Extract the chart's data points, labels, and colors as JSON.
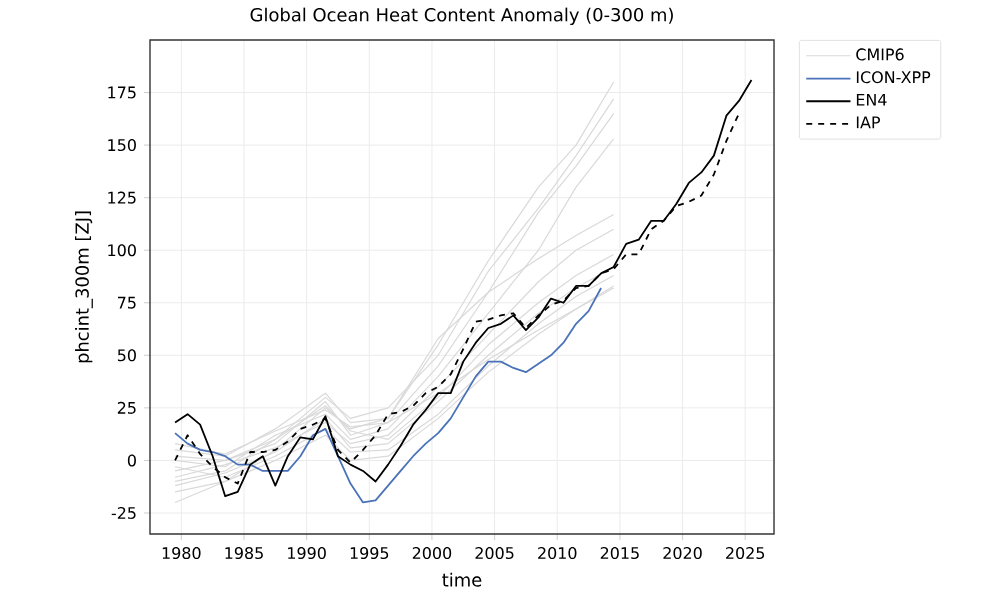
{
  "chart_data": {
    "type": "line",
    "title": "Global Ocean Heat Content Anomaly (0-300 m)",
    "xlabel": "time",
    "ylabel": "phcint_300m [ZJ]",
    "xlim": [
      1977.5,
      2027.3
    ],
    "ylim": [
      -35,
      200
    ],
    "xticks": [
      1980,
      1985,
      1990,
      1995,
      2000,
      2005,
      2010,
      2015,
      2020,
      2025
    ],
    "yticks": [
      -25,
      0,
      25,
      50,
      75,
      100,
      125,
      150,
      175
    ],
    "grid": true,
    "legend": "top right",
    "series": [
      {
        "name": "CMIP6",
        "color": "#d9d9d9",
        "x": [
          1979.5,
          1983.5,
          1987.5,
          1991.5,
          1993.5,
          1996.5,
          2000.5,
          2004.5,
          2008.5,
          2011.5,
          2014.5
        ],
        "values": [
          -20,
          -10,
          5,
          25,
          15,
          20,
          55,
          95,
          130,
          150,
          180
        ]
      },
      {
        "color": "#d9d9d9",
        "x": [
          1979.5,
          1983.5,
          1987.5,
          1991.5,
          1993.5,
          1996.5,
          2000.5,
          2004.5,
          2008.5,
          2011.5,
          2014.5
        ],
        "values": [
          -10,
          -5,
          10,
          30,
          20,
          25,
          50,
          90,
          120,
          145,
          172
        ]
      },
      {
        "color": "#d9d9d9",
        "x": [
          1979.5,
          1983.5,
          1987.5,
          1991.5,
          1993.5,
          1996.5,
          2000.5,
          2004.5,
          2008.5,
          2011.5,
          2014.5
        ],
        "values": [
          -5,
          0,
          8,
          28,
          12,
          18,
          45,
          80,
          118,
          140,
          165
        ]
      },
      {
        "color": "#d9d9d9",
        "x": [
          1979.5,
          1983.5,
          1987.5,
          1991.5,
          1993.5,
          1996.5,
          2000.5,
          2004.5,
          2008.5,
          2011.5,
          2014.5
        ],
        "values": [
          0,
          -3,
          12,
          22,
          10,
          15,
          40,
          70,
          100,
          130,
          153
        ]
      },
      {
        "color": "#d9d9d9",
        "x": [
          1979.5,
          1983.5,
          1987.5,
          1991.5,
          1993.5,
          1996.5,
          2000.5,
          2004.5,
          2008.5,
          2011.5,
          2014.5
        ],
        "values": [
          5,
          2,
          15,
          32,
          18,
          20,
          58,
          80,
          96,
          107,
          117
        ]
      },
      {
        "color": "#d9d9d9",
        "x": [
          1979.5,
          1983.5,
          1987.5,
          1991.5,
          1993.5,
          1996.5,
          2000.5,
          2004.5,
          2008.5,
          2011.5,
          2014.5
        ],
        "values": [
          -8,
          -2,
          6,
          18,
          8,
          12,
          35,
          60,
          85,
          100,
          110
        ]
      },
      {
        "color": "#d9d9d9",
        "x": [
          1979.5,
          1983.5,
          1987.5,
          1991.5,
          1993.5,
          1996.5,
          2000.5,
          2004.5,
          2008.5,
          2011.5,
          2014.5
        ],
        "values": [
          2,
          0,
          10,
          26,
          14,
          10,
          30,
          55,
          75,
          88,
          98
        ]
      },
      {
        "color": "#d9d9d9",
        "x": [
          1979.5,
          1983.5,
          1987.5,
          1991.5,
          1993.5,
          1996.5,
          2000.5,
          2004.5,
          2008.5,
          2011.5,
          2014.5
        ],
        "values": [
          -12,
          -6,
          4,
          20,
          6,
          8,
          28,
          50,
          70,
          82,
          92
        ]
      },
      {
        "color": "#d9d9d9",
        "x": [
          1979.5,
          1983.5,
          1987.5,
          1991.5,
          1993.5,
          1996.5,
          2000.5,
          2004.5,
          2008.5,
          2011.5,
          2014.5
        ],
        "values": [
          -3,
          -8,
          2,
          15,
          4,
          5,
          22,
          45,
          65,
          78,
          88
        ]
      },
      {
        "color": "#d9d9d9",
        "x": [
          1979.5,
          1983.5,
          1987.5,
          1991.5,
          1993.5,
          1996.5,
          2000.5,
          2004.5,
          2008.5,
          2011.5,
          2014.5
        ],
        "values": [
          8,
          3,
          14,
          24,
          16,
          18,
          32,
          48,
          62,
          72,
          83
        ]
      },
      {
        "color": "#d9d9d9",
        "x": [
          1979.5,
          1983.5,
          1987.5,
          1991.5,
          1993.5,
          1996.5,
          2000.5,
          2004.5,
          2008.5,
          2011.5,
          2014.5
        ],
        "values": [
          -15,
          -10,
          0,
          12,
          0,
          2,
          20,
          42,
          60,
          72,
          82
        ]
      },
      {
        "name": "ICON-XPP",
        "color": "#4a72b8",
        "x": [
          1979.5,
          1980.5,
          1981.5,
          1982.5,
          1983.5,
          1984.5,
          1985.5,
          1986.5,
          1987.5,
          1988.5,
          1989.5,
          1990.5,
          1991.5,
          1992.5,
          1993.5,
          1994.5,
          1995.5,
          1996.5,
          1997.5,
          1998.5,
          1999.5,
          2000.5,
          2001.5,
          2002.5,
          2003.5,
          2004.5,
          2005.5,
          2006.5,
          2007.5,
          2008.5,
          2009.5,
          2010.5,
          2011.5,
          2012.5,
          2013.5
        ],
        "values": [
          13,
          8,
          5,
          4,
          2,
          -2,
          -2,
          -5,
          -5,
          -5,
          2,
          12,
          15,
          2,
          -11,
          -20,
          -19,
          -12,
          -5,
          2,
          8,
          13,
          20,
          30,
          40,
          47,
          47,
          44,
          42,
          46,
          50,
          56,
          65,
          71,
          82
        ]
      },
      {
        "name": "EN4",
        "color": "#000000",
        "x": [
          1979.5,
          1980.5,
          1981.5,
          1982.5,
          1983.5,
          1984.5,
          1985.5,
          1986.5,
          1987.5,
          1988.5,
          1989.5,
          1990.5,
          1991.5,
          1992.5,
          1993.5,
          1994.5,
          1995.5,
          1996.5,
          1997.5,
          1998.5,
          1999.5,
          2000.5,
          2001.5,
          2002.5,
          2003.5,
          2004.5,
          2005.5,
          2006.5,
          2007.5,
          2008.5,
          2009.5,
          2010.5,
          2011.5,
          2012.5,
          2013.5,
          2014.5,
          2015.5,
          2016.5,
          2017.5,
          2018.5,
          2019.5,
          2020.5,
          2021.5,
          2022.5,
          2023.5,
          2024.5,
          2025.5
        ],
        "values": [
          18,
          22,
          17,
          2,
          -17,
          -15,
          -2,
          2,
          -12,
          2,
          11,
          10,
          21,
          2,
          -2,
          -5,
          -10,
          -2,
          7,
          17,
          24,
          32,
          32,
          47,
          56,
          63,
          65,
          69,
          62,
          68,
          77,
          75,
          83,
          83,
          89,
          92,
          103,
          105,
          114,
          114,
          122,
          132,
          137,
          145,
          164,
          171,
          181
        ]
      },
      {
        "name": "IAP",
        "color": "#000000",
        "line_style": "dashed",
        "x": [
          1979.5,
          1980.5,
          1981.5,
          1982.5,
          1983.5,
          1984.5,
          1985.5,
          1986.5,
          1987.5,
          1988.5,
          1989.5,
          1990.5,
          1991.5,
          1992.5,
          1993.5,
          1994.5,
          1995.5,
          1996.5,
          1997.5,
          1998.5,
          1999.5,
          2000.5,
          2001.5,
          2002.5,
          2003.5,
          2004.5,
          2005.5,
          2006.5,
          2007.5,
          2008.5,
          2009.5,
          2010.5,
          2011.5,
          2012.5,
          2013.5,
          2014.5,
          2015.5,
          2016.5,
          2017.5,
          2018.5,
          2019.5,
          2020.5,
          2021.5,
          2022.5,
          2023.5,
          2024.5
        ],
        "values": [
          0,
          12,
          3,
          -3,
          -8,
          -11,
          4,
          4,
          5,
          9,
          15,
          17,
          20,
          5,
          -1,
          5,
          12,
          22,
          23,
          26,
          32,
          35,
          41,
          53,
          66,
          67,
          69,
          70,
          63,
          69,
          74,
          76,
          82,
          83,
          89,
          91,
          98,
          98,
          110,
          114,
          121,
          123,
          126,
          136,
          152,
          165
        ]
      }
    ]
  }
}
